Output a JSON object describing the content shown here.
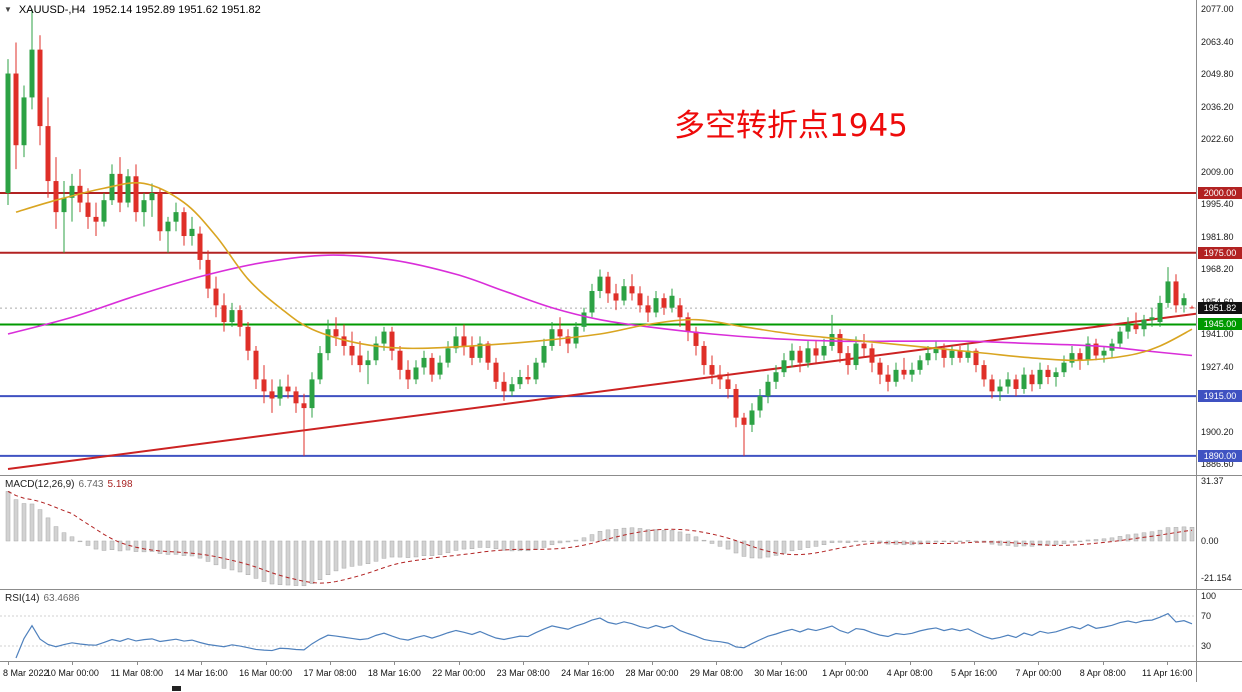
{
  "title": {
    "symbol": "XAUUSD-,H4",
    "ohlc_text": "1952.14 1952.89 1951.62 1951.82",
    "open": "1952.14",
    "high": "1952.89",
    "low": "1951.62",
    "close": "1951.82"
  },
  "annotation": {
    "text": "多空转折点1945"
  },
  "macd_panel": {
    "label": "MACD(12,26,9)",
    "value_main": "6.743",
    "value_signal": "5.198",
    "axis_labels": [
      "31.37",
      "0.00",
      "-21.154"
    ]
  },
  "rsi_panel": {
    "label": "RSI(14)",
    "value": "63.4686",
    "axis_labels": [
      "100",
      "70",
      "30"
    ]
  },
  "colors": {
    "up": "#2ca244",
    "down": "#df2f28",
    "ma_fast": "#d9a521",
    "ma_slow": "#d92ed9",
    "trend": "#cc2222",
    "annotation": "#ee0a0a",
    "macd_hist": "#d2d2d2",
    "macd_signal": "#b22222",
    "rsi": "#4f81bd",
    "level_red": "#b22222",
    "level_green": "#009900",
    "level_blue1": "#3f51c1",
    "level_blue2": "#4053c2",
    "current": "#111111"
  },
  "chart_data": {
    "type": "candlestick",
    "symbol": "XAUUSD-",
    "timeframe": "H4",
    "title": "XAUUSD-,H4 1952.14 1952.89 1951.62 1951.82",
    "grid": false,
    "legend_position": "none",
    "y_axis_ticks": [
      "2077.00",
      "2063.40",
      "2049.80",
      "2036.20",
      "2022.60",
      "2009.00",
      "1995.40",
      "1981.80",
      "1968.20",
      "1954.60",
      "1941.00",
      "1927.40",
      "1913.80",
      "1900.20",
      "1886.60"
    ],
    "x_axis_labels": [
      "8 Mar 2022",
      "10 Mar 00:00",
      "11 Mar 08:00",
      "14 Mar 16:00",
      "16 Mar 00:00",
      "17 Mar 08:00",
      "18 Mar 16:00",
      "22 Mar 00:00",
      "23 Mar 08:00",
      "24 Mar 16:00",
      "28 Mar 00:00",
      "29 Mar 08:00",
      "30 Mar 16:00",
      "1 Apr 00:00",
      "4 Apr 08:00",
      "5 Apr 16:00",
      "7 Apr 00:00",
      "8 Apr 08:00",
      "11 Apr 16:00"
    ],
    "horizontal_levels": [
      {
        "price": 2000.0,
        "label": "2000.00",
        "color_key": "level_red"
      },
      {
        "price": 1975.0,
        "label": "1975.00",
        "color_key": "level_red"
      },
      {
        "price": 1945.0,
        "label": "1945.00",
        "color_key": "level_green"
      },
      {
        "price": 1915.0,
        "label": "1915.00",
        "color_key": "level_blue1"
      },
      {
        "price": 1890.0,
        "label": "1890.00",
        "color_key": "level_blue2"
      }
    ],
    "current_price": {
      "value": 1951.82,
      "label": "1951.82"
    },
    "trendline": {
      "from_index": 0,
      "from_price": 1884.5,
      "to_index": 148,
      "to_price": 1949.5
    },
    "ma_fast_points": [
      [
        1,
        1992
      ],
      [
        6,
        1997
      ],
      [
        12,
        2002
      ],
      [
        17,
        2004
      ],
      [
        22,
        1996
      ],
      [
        26,
        1982
      ],
      [
        30,
        1964
      ],
      [
        34,
        1952
      ],
      [
        38,
        1943
      ],
      [
        44,
        1937
      ],
      [
        50,
        1935
      ],
      [
        58,
        1936
      ],
      [
        66,
        1938
      ],
      [
        74,
        1941
      ],
      [
        80,
        1945
      ],
      [
        86,
        1947
      ],
      [
        92,
        1944
      ],
      [
        98,
        1941
      ],
      [
        104,
        1939
      ],
      [
        110,
        1937
      ],
      [
        116,
        1935
      ],
      [
        122,
        1933
      ],
      [
        128,
        1931
      ],
      [
        134,
        1930
      ],
      [
        140,
        1932
      ],
      [
        144,
        1936
      ],
      [
        148,
        1943
      ]
    ],
    "ma_slow_points": [
      [
        0,
        1941
      ],
      [
        8,
        1948
      ],
      [
        16,
        1957
      ],
      [
        24,
        1965
      ],
      [
        32,
        1971
      ],
      [
        40,
        1974
      ],
      [
        48,
        1972
      ],
      [
        56,
        1966
      ],
      [
        62,
        1959
      ],
      [
        68,
        1952
      ],
      [
        74,
        1947
      ],
      [
        80,
        1944
      ],
      [
        88,
        1941
      ],
      [
        96,
        1939
      ],
      [
        104,
        1938
      ],
      [
        112,
        1938
      ],
      [
        120,
        1938
      ],
      [
        128,
        1937
      ],
      [
        136,
        1936
      ],
      [
        142,
        1934
      ],
      [
        148,
        1932
      ]
    ],
    "macd": {
      "fast": 12,
      "slow": 26,
      "signal": 9,
      "last_main": 6.743,
      "last_signal": 5.198,
      "axis": [
        31.37,
        0,
        -21.154
      ]
    },
    "rsi": {
      "period": 14,
      "last": 63.4686,
      "axis": [
        100,
        70,
        30
      ]
    },
    "candles_ohlc": [
      [
        2000,
        2056,
        1995,
        2050
      ],
      [
        2050,
        2063,
        2010,
        2020
      ],
      [
        2020,
        2045,
        2015,
        2040
      ],
      [
        2040,
        2077,
        2035,
        2060
      ],
      [
        2060,
        2066,
        2020,
        2028
      ],
      [
        2028,
        2040,
        1998,
        2005
      ],
      [
        2005,
        2015,
        1985,
        1992
      ],
      [
        1992,
        2005,
        1975,
        1998
      ],
      [
        1998,
        2008,
        1988,
        2003
      ],
      [
        2003,
        2010,
        1992,
        1996
      ],
      [
        1996,
        2002,
        1985,
        1990
      ],
      [
        1990,
        1996,
        1982,
        1988
      ],
      [
        1988,
        2000,
        1986,
        1997
      ],
      [
        1997,
        2012,
        1995,
        2008
      ],
      [
        2008,
        2015,
        1992,
        1996
      ],
      [
        1996,
        2010,
        1994,
        2007
      ],
      [
        2007,
        2012,
        1988,
        1992
      ],
      [
        1992,
        2000,
        1986,
        1997
      ],
      [
        1997,
        2004,
        1990,
        2000
      ],
      [
        2000,
        2002,
        1980,
        1984
      ],
      [
        1984,
        1990,
        1975,
        1988
      ],
      [
        1988,
        1996,
        1984,
        1992
      ],
      [
        1992,
        1994,
        1978,
        1982
      ],
      [
        1982,
        1990,
        1978,
        1985
      ],
      [
        1983,
        1986,
        1968,
        1972
      ],
      [
        1972,
        1976,
        1956,
        1960
      ],
      [
        1960,
        1965,
        1948,
        1953
      ],
      [
        1953,
        1958,
        1942,
        1946
      ],
      [
        1946,
        1954,
        1944,
        1951
      ],
      [
        1951,
        1953,
        1940,
        1944
      ],
      [
        1944,
        1946,
        1930,
        1934
      ],
      [
        1934,
        1936,
        1918,
        1922
      ],
      [
        1922,
        1928,
        1912,
        1917
      ],
      [
        1917,
        1922,
        1908,
        1914
      ],
      [
        1914,
        1922,
        1911,
        1919
      ],
      [
        1919,
        1924,
        1914,
        1917
      ],
      [
        1917,
        1919,
        1908,
        1912
      ],
      [
        1912,
        1916,
        1890,
        1910
      ],
      [
        1910,
        1925,
        1906,
        1922
      ],
      [
        1922,
        1936,
        1920,
        1933
      ],
      [
        1933,
        1947,
        1930,
        1943
      ],
      [
        1943,
        1948,
        1936,
        1940
      ],
      [
        1940,
        1945,
        1932,
        1936
      ],
      [
        1936,
        1942,
        1928,
        1932
      ],
      [
        1932,
        1938,
        1925,
        1928
      ],
      [
        1928,
        1934,
        1920,
        1930
      ],
      [
        1930,
        1940,
        1928,
        1937
      ],
      [
        1937,
        1944,
        1934,
        1942
      ],
      [
        1942,
        1944,
        1930,
        1934
      ],
      [
        1934,
        1936,
        1922,
        1926
      ],
      [
        1926,
        1930,
        1918,
        1922
      ],
      [
        1922,
        1930,
        1920,
        1927
      ],
      [
        1927,
        1934,
        1924,
        1931
      ],
      [
        1931,
        1933,
        1921,
        1924
      ],
      [
        1924,
        1932,
        1922,
        1929
      ],
      [
        1929,
        1938,
        1927,
        1935
      ],
      [
        1935,
        1944,
        1933,
        1940
      ],
      [
        1940,
        1945,
        1932,
        1936
      ],
      [
        1936,
        1940,
        1928,
        1931
      ],
      [
        1931,
        1940,
        1929,
        1937
      ],
      [
        1937,
        1938,
        1926,
        1929
      ],
      [
        1929,
        1931,
        1918,
        1921
      ],
      [
        1921,
        1925,
        1913,
        1917
      ],
      [
        1917,
        1923,
        1915,
        1920
      ],
      [
        1920,
        1926,
        1918,
        1923
      ],
      [
        1923,
        1928,
        1920,
        1922
      ],
      [
        1922,
        1931,
        1920,
        1929
      ],
      [
        1929,
        1939,
        1927,
        1936
      ],
      [
        1936,
        1946,
        1934,
        1943
      ],
      [
        1943,
        1948,
        1936,
        1940
      ],
      [
        1940,
        1943,
        1933,
        1937
      ],
      [
        1937,
        1946,
        1935,
        1944
      ],
      [
        1944,
        1952,
        1942,
        1950
      ],
      [
        1950,
        1962,
        1948,
        1959
      ],
      [
        1959,
        1968,
        1956,
        1965
      ],
      [
        1965,
        1967,
        1954,
        1958
      ],
      [
        1958,
        1962,
        1951,
        1955
      ],
      [
        1955,
        1964,
        1953,
        1961
      ],
      [
        1961,
        1966,
        1955,
        1958
      ],
      [
        1958,
        1961,
        1950,
        1953
      ],
      [
        1953,
        1957,
        1946,
        1950
      ],
      [
        1950,
        1959,
        1948,
        1956
      ],
      [
        1956,
        1958,
        1949,
        1952
      ],
      [
        1952,
        1960,
        1950,
        1957
      ],
      [
        1953,
        1956,
        1944,
        1948
      ],
      [
        1948,
        1950,
        1938,
        1942
      ],
      [
        1942,
        1944,
        1932,
        1936
      ],
      [
        1936,
        1938,
        1924,
        1928
      ],
      [
        1928,
        1932,
        1920,
        1924
      ],
      [
        1924,
        1928,
        1918,
        1922
      ],
      [
        1922,
        1925,
        1914,
        1918
      ],
      [
        1918,
        1920,
        1902,
        1906
      ],
      [
        1906,
        1908,
        1890,
        1903
      ],
      [
        1903,
        1912,
        1900,
        1909
      ],
      [
        1909,
        1918,
        1906,
        1915
      ],
      [
        1915,
        1924,
        1912,
        1921
      ],
      [
        1921,
        1928,
        1918,
        1925
      ],
      [
        1925,
        1933,
        1923,
        1930
      ],
      [
        1930,
        1937,
        1927,
        1934
      ],
      [
        1934,
        1936,
        1925,
        1929
      ],
      [
        1929,
        1938,
        1927,
        1935
      ],
      [
        1935,
        1938,
        1929,
        1932
      ],
      [
        1932,
        1939,
        1930,
        1936
      ],
      [
        1936,
        1949,
        1934,
        1941
      ],
      [
        1941,
        1943,
        1929,
        1933
      ],
      [
        1933,
        1936,
        1924,
        1928
      ],
      [
        1928,
        1940,
        1926,
        1937
      ],
      [
        1937,
        1941,
        1931,
        1935
      ],
      [
        1935,
        1937,
        1925,
        1929
      ],
      [
        1929,
        1931,
        1920,
        1924
      ],
      [
        1924,
        1928,
        1917,
        1921
      ],
      [
        1921,
        1929,
        1919,
        1926
      ],
      [
        1926,
        1931,
        1922,
        1924
      ],
      [
        1924,
        1929,
        1921,
        1926
      ],
      [
        1926,
        1932,
        1924,
        1930
      ],
      [
        1930,
        1936,
        1928,
        1933
      ],
      [
        1933,
        1938,
        1930,
        1935
      ],
      [
        1935,
        1937,
        1927,
        1931
      ],
      [
        1931,
        1936,
        1928,
        1934
      ],
      [
        1934,
        1936,
        1929,
        1931
      ],
      [
        1931,
        1937,
        1929,
        1934
      ],
      [
        1934,
        1935,
        1925,
        1928
      ],
      [
        1928,
        1930,
        1919,
        1922
      ],
      [
        1922,
        1924,
        1914,
        1917
      ],
      [
        1917,
        1922,
        1913,
        1919
      ],
      [
        1919,
        1925,
        1916,
        1922
      ],
      [
        1922,
        1924,
        1915,
        1918
      ],
      [
        1918,
        1927,
        1916,
        1924
      ],
      [
        1924,
        1926,
        1917,
        1920
      ],
      [
        1920,
        1929,
        1918,
        1926
      ],
      [
        1926,
        1928,
        1920,
        1923
      ],
      [
        1923,
        1927,
        1919,
        1925
      ],
      [
        1925,
        1932,
        1923,
        1929
      ],
      [
        1929,
        1936,
        1927,
        1933
      ],
      [
        1933,
        1935,
        1926,
        1930
      ],
      [
        1930,
        1940,
        1928,
        1937
      ],
      [
        1937,
        1939,
        1930,
        1932
      ],
      [
        1932,
        1936,
        1929,
        1934
      ],
      [
        1934,
        1939,
        1931,
        1937
      ],
      [
        1937,
        1944,
        1935,
        1942
      ],
      [
        1942,
        1948,
        1939,
        1945
      ],
      [
        1945,
        1950,
        1941,
        1943
      ],
      [
        1943,
        1949,
        1940,
        1947
      ],
      [
        1947,
        1952,
        1944,
        1948
      ],
      [
        1946,
        1957,
        1944,
        1954
      ],
      [
        1954,
        1969,
        1952,
        1963
      ],
      [
        1963,
        1966,
        1950,
        1953
      ],
      [
        1953,
        1958,
        1950,
        1956
      ],
      [
        1952.14,
        1952.89,
        1951.62,
        1951.82
      ]
    ]
  }
}
